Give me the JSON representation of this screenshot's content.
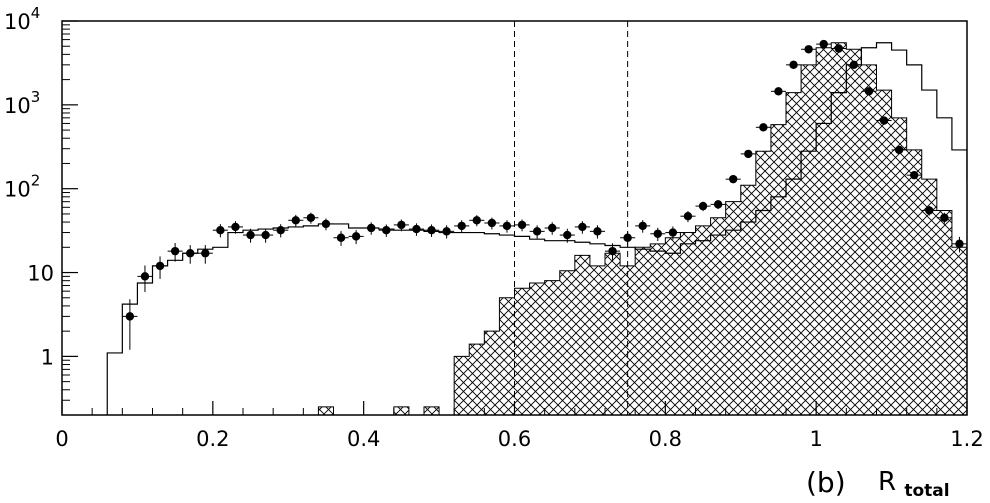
{
  "chart_data": {
    "type": "histogram",
    "xlabel_main": "R",
    "xlabel_sub": "total",
    "panel_label": "(b)",
    "xlim": [
      0,
      1.2
    ],
    "ylim": [
      0.2,
      10000
    ],
    "yscale": "log",
    "x_ticks": [
      {
        "value": 0,
        "label": "0"
      },
      {
        "value": 0.2,
        "label": "0.2"
      },
      {
        "value": 0.4,
        "label": "0.4"
      },
      {
        "value": 0.6,
        "label": "0.6"
      },
      {
        "value": 0.8,
        "label": "0.8"
      },
      {
        "value": 1.0,
        "label": "1"
      },
      {
        "value": 1.2,
        "label": "1.2"
      }
    ],
    "y_ticks": [
      {
        "value": 1,
        "label": "1"
      },
      {
        "value": 10,
        "label": "10"
      },
      {
        "value": 100,
        "label": "10",
        "exp": "2"
      },
      {
        "value": 1000,
        "label": "10",
        "exp": "3"
      },
      {
        "value": 10000,
        "label": "10",
        "exp": "4"
      }
    ],
    "cut_lines": [
      0.6,
      0.75
    ],
    "bin_width": 0.02,
    "total_mc_histogram": {
      "bin_start": 0.06,
      "values": [
        1.1,
        4.2,
        7.5,
        12,
        14,
        17,
        19,
        20,
        30,
        32,
        33,
        34,
        35,
        36,
        38,
        38,
        34,
        34,
        33,
        32,
        32,
        31,
        30,
        30,
        30,
        29,
        28,
        27,
        25,
        24,
        24,
        23,
        22,
        21,
        20,
        19,
        18,
        17,
        22,
        24,
        28,
        32,
        40,
        55,
        80,
        130,
        280,
        600,
        1400,
        3000,
        4800,
        5500,
        4500,
        3000,
        1500,
        700,
        290,
        130,
        55,
        20
      ]
    },
    "hatched_histogram": {
      "bin_start": 0.52,
      "values": [
        1.0,
        1.4,
        2.0,
        5.0,
        6.5,
        7.5,
        8.0,
        10.5,
        16,
        12,
        17,
        12,
        20,
        22,
        26,
        30,
        36,
        45,
        70,
        110,
        280,
        580,
        1400,
        3000,
        4800,
        5500,
        4600,
        3000,
        1500,
        700,
        290,
        130,
        55,
        20
      ],
      "isolated_bins": [
        {
          "x0": 0.34,
          "x1": 0.36,
          "value": 0.25
        },
        {
          "x0": 0.44,
          "x1": 0.46,
          "value": 0.25
        },
        {
          "x0": 0.48,
          "x1": 0.5,
          "value": 0.25
        }
      ]
    },
    "data_points": {
      "x": [
        0.09,
        0.11,
        0.13,
        0.15,
        0.17,
        0.19,
        0.21,
        0.23,
        0.25,
        0.27,
        0.29,
        0.31,
        0.33,
        0.35,
        0.37,
        0.39,
        0.41,
        0.43,
        0.45,
        0.47,
        0.49,
        0.51,
        0.53,
        0.55,
        0.57,
        0.59,
        0.61,
        0.63,
        0.65,
        0.67,
        0.69,
        0.71,
        0.73,
        0.75,
        0.77,
        0.79,
        0.81,
        0.83,
        0.85,
        0.87,
        0.89,
        0.91,
        0.93,
        0.95,
        0.97,
        0.99,
        1.01,
        1.03,
        1.05,
        1.07,
        1.09,
        1.11,
        1.13,
        1.15,
        1.17,
        1.19
      ],
      "y": [
        3,
        9,
        12,
        18,
        17,
        17,
        32,
        35,
        28,
        28,
        32,
        42,
        45,
        38,
        26,
        27,
        34,
        32,
        37,
        33,
        32,
        31,
        36,
        42,
        39,
        36,
        37,
        31,
        34,
        28,
        35,
        31,
        18,
        26,
        36,
        29,
        30,
        47,
        62,
        65,
        130,
        260,
        540,
        1450,
        3000,
        4600,
        5300,
        4700,
        3000,
        1450,
        650,
        290,
        145,
        55,
        45,
        22
      ],
      "yerr_frac": [
        0.6,
        0.35,
        0.3,
        0.25,
        0.25,
        0.25,
        0.18,
        0.17,
        0.19,
        0.19,
        0.18,
        0.16,
        0.15,
        0.16,
        0.2,
        0.19,
        0.17,
        0.17,
        0.16,
        0.17,
        0.17,
        0.18,
        0.17,
        0.15,
        0.16,
        0.17,
        0.16,
        0.18,
        0.17,
        0.19,
        0.17,
        0.18,
        0.24,
        0.19,
        0.17,
        0.18,
        0.18,
        0.15,
        0.13,
        0.12,
        0.09,
        0.06,
        0.04,
        0.03,
        0.02,
        0.015,
        0.014,
        0.015,
        0.02,
        0.03,
        0.04,
        0.06,
        0.08,
        0.13,
        0.15,
        0.21
      ]
    }
  }
}
